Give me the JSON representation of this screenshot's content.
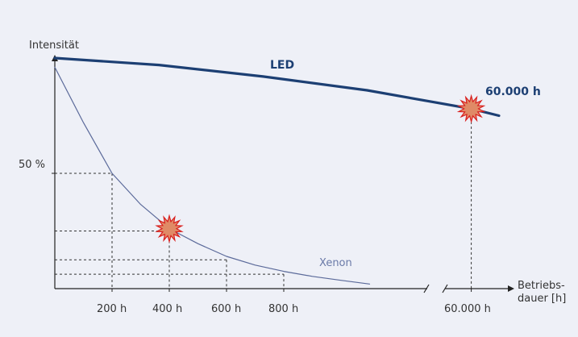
{
  "chart_data": {
    "type": "line",
    "title": "",
    "ylabel": "Intensität",
    "xlabel_lines": [
      "Betriebs-",
      "dauer [h]"
    ],
    "x_tick_labels": [
      "200 h",
      "400 h",
      "600 h",
      "800 h",
      "60.000 h"
    ],
    "y_tick_labels": [
      "50 %"
    ],
    "axis_break": true,
    "grid": false,
    "colors": {
      "background": "#eef0f7",
      "led": "#1c3f73",
      "xenon": "#5b6a9a",
      "burst_fill": "#e08a66",
      "burst_stroke": "#d9201f",
      "axis": "#222222",
      "guide": "#333333"
    },
    "series": [
      {
        "name": "LED",
        "color": "#1c3f73",
        "points": [
          [
            0,
            100
          ],
          [
            15000,
            97
          ],
          [
            30000,
            92
          ],
          [
            45000,
            86
          ],
          [
            60000,
            78
          ],
          [
            64000,
            75
          ]
        ]
      },
      {
        "name": "Xenon",
        "color": "#5b6a9a",
        "points": [
          [
            0,
            96
          ],
          [
            100,
            72
          ],
          [
            200,
            50
          ],
          [
            300,
            36.5
          ],
          [
            400,
            26
          ],
          [
            500,
            19.5
          ],
          [
            600,
            14
          ],
          [
            700,
            10.2
          ],
          [
            800,
            7.5
          ],
          [
            900,
            5.3
          ],
          [
            1000,
            3.6
          ],
          [
            1100,
            2
          ]
        ]
      }
    ],
    "annotations": [
      {
        "label": "60.000 h",
        "series": "LED",
        "x": 60000,
        "y": 78,
        "marker": "burst"
      },
      {
        "label": "",
        "series": "Xenon",
        "x": 400,
        "y": 26,
        "marker": "burst"
      }
    ],
    "guide_lines": [
      {
        "x": 200,
        "y": 50
      },
      {
        "x": 400,
        "y": 25
      },
      {
        "x": 600,
        "y": 12.5
      },
      {
        "x": 800,
        "y": 6.25
      }
    ]
  }
}
